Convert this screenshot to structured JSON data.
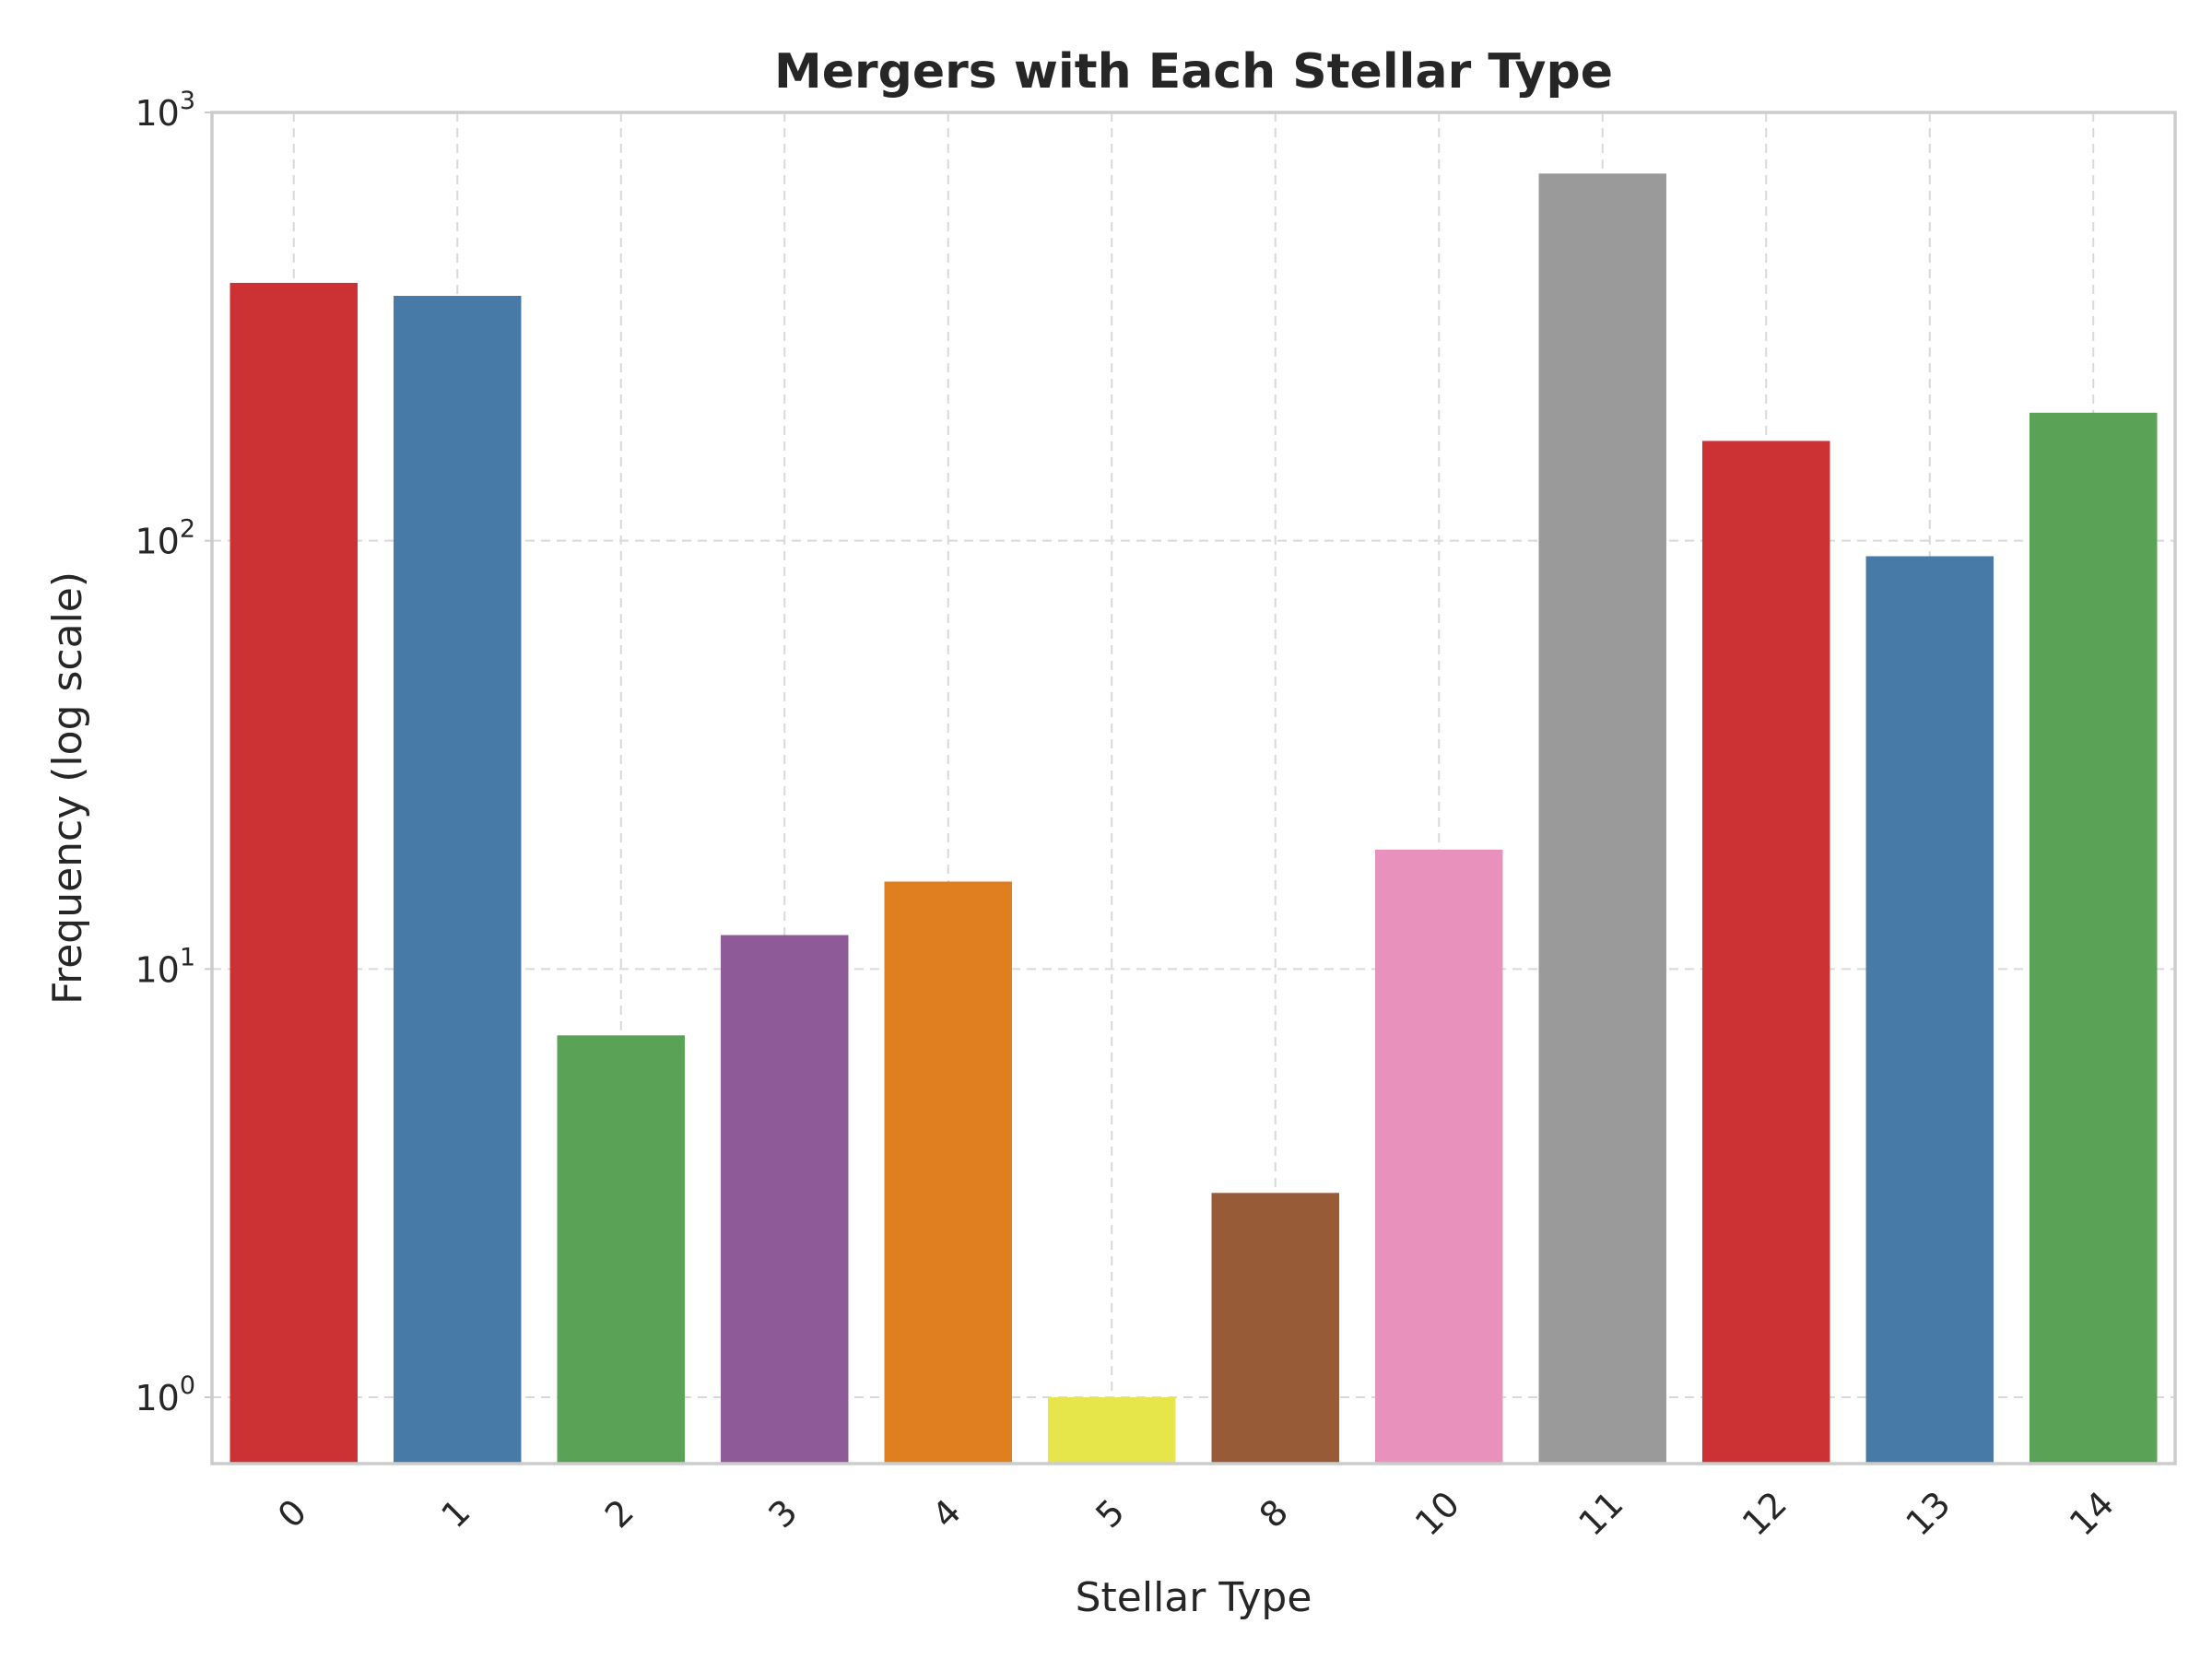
{
  "chart_data": {
    "type": "bar",
    "title": "Mergers with Each Stellar Type",
    "xlabel": "Stellar Type",
    "ylabel": "Frequency (log scale)",
    "yscale": "log",
    "ylim": [
      0.7,
      1000
    ],
    "grid": true,
    "categories": [
      "0",
      "1",
      "2",
      "3",
      "4",
      "5",
      "8",
      "10",
      "11",
      "12",
      "13",
      "14"
    ],
    "values": [
      400,
      373,
      7,
      12,
      16,
      1,
      3,
      19,
      720,
      171,
      92,
      199
    ],
    "colors": [
      "#cc3134",
      "#487aa8",
      "#59a256",
      "#8e5a98",
      "#e07f20",
      "#e6e64b",
      "#975b38",
      "#e891bc",
      "#9a9a9a",
      "#cc3134",
      "#487aa8",
      "#59a256"
    ],
    "yticks": [
      {
        "base": "10",
        "exp": "0",
        "value": 1
      },
      {
        "base": "10",
        "exp": "1",
        "value": 10
      },
      {
        "base": "10",
        "exp": "2",
        "value": 100
      },
      {
        "base": "10",
        "exp": "3",
        "value": 1000
      }
    ]
  }
}
